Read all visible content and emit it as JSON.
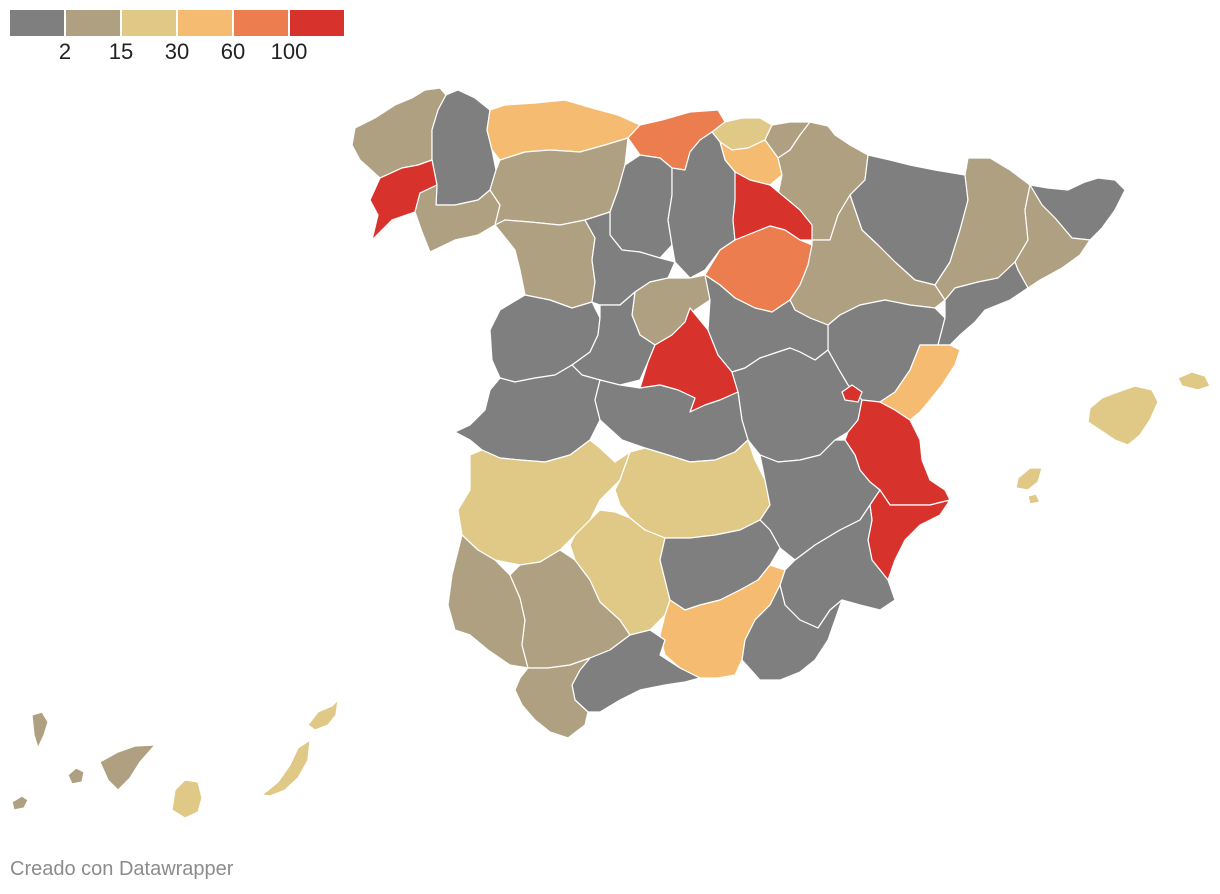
{
  "legend": {
    "swatch_colors": [
      "#7f7f7f",
      "#afa082",
      "#e0c887",
      "#f5bc71",
      "#ec7d4e",
      "#d8322c"
    ],
    "ticks": [
      "2",
      "15",
      "30",
      "60",
      "100"
    ]
  },
  "map": {
    "bin_colors": {
      "c0": "#7f7f7f",
      "c1": "#afa082",
      "c2": "#e0c887",
      "c3": "#f5bc71",
      "c4": "#ec7d4e",
      "c5": "#d8322c"
    }
  },
  "footer": {
    "credit": "Creado con Datawrapper"
  }
}
